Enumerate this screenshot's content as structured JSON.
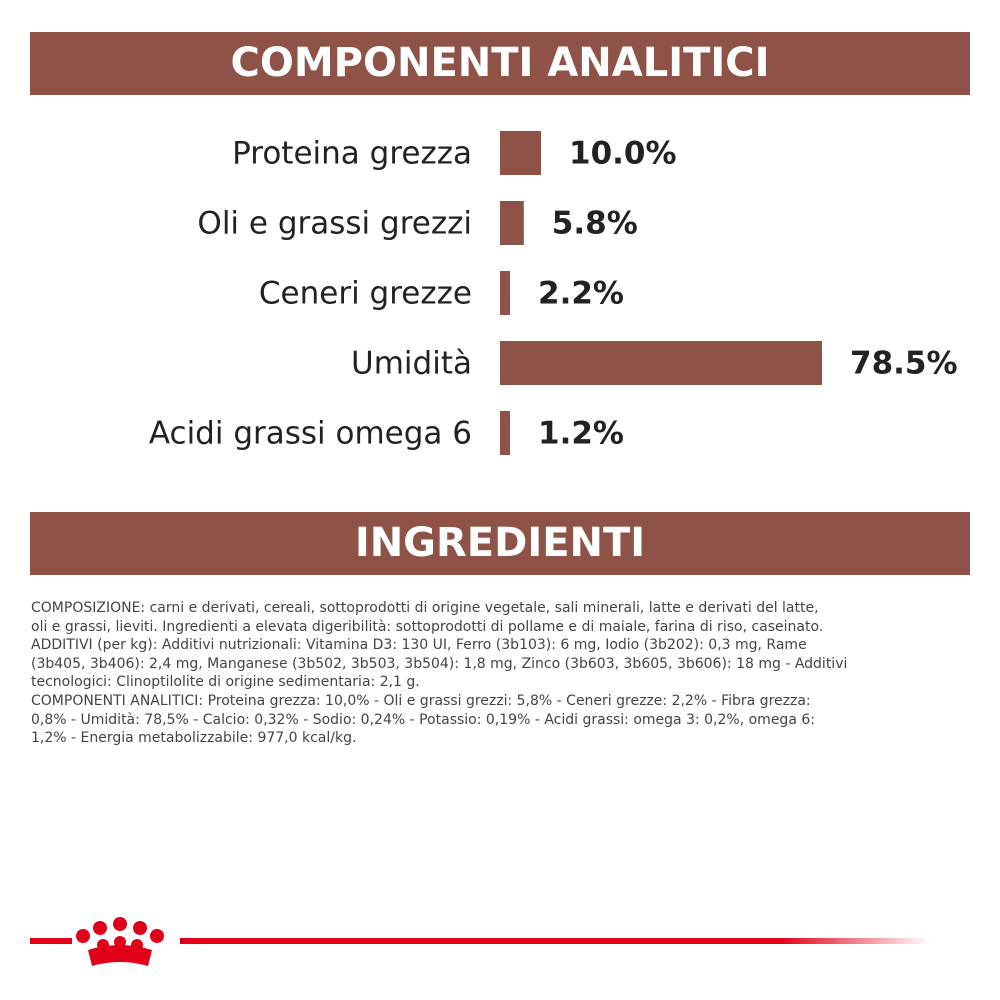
{
  "chart_data": {
    "type": "bar",
    "orientation": "horizontal",
    "title": "COMPONENTI ANALITICI",
    "color": "#8e5246",
    "categories": [
      "Proteina grezza",
      "Oli e grassi grezzi",
      "Ceneri grezze",
      "Umidità",
      "Acidi grassi omega 6"
    ],
    "values": [
      10.0,
      5.8,
      2.2,
      78.5,
      1.2
    ],
    "value_labels": [
      "10.0%",
      "5.8%",
      "2.2%",
      "78.5%",
      "1.2%"
    ]
  },
  "ingredients": {
    "title": "INGREDIENTI",
    "lines": [
      "COMPOSIZIONE: carni e derivati, cereali, sottoprodotti di origine vegetale, sali minerali, latte e derivati del latte,",
      "oli e grassi, lieviti. Ingredienti a elevata digeribilità: sottoprodotti di pollame e di maiale, farina di riso, caseinato.",
      "ADDITIVI (per kg): Additivi nutrizionali: Vitamina D3: 130 UI, Ferro (3b103): 6 mg, Iodio (3b202): 0,3 mg, Rame",
      "(3b405, 3b406): 2,4 mg, Manganese (3b502, 3b503, 3b504): 1,8 mg, Zinco (3b603, 3b605, 3b606): 18 mg - Additivi",
      "tecnologici: Clinoptilolite di origine sedimentaria: 2,1 g.",
      "COMPONENTI ANALITICI: Proteina grezza: 10,0% - Oli e grassi grezzi: 5,8% - Ceneri grezze: 2,2% - Fibra grezza:",
      "0,8% - Umidità: 78,5% - Calcio: 0,32% - Sodio: 0,24% - Potassio: 0,19% - Acidi grassi: omega 3: 0,2%, omega 6:",
      "1,2% - Energia metabolizzabile: 977,0 kcal/kg."
    ]
  }
}
